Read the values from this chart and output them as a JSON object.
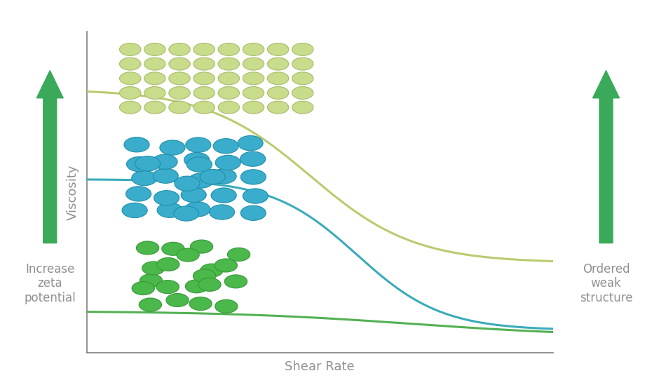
{
  "xlabel": "Shear Rate",
  "ylabel": "Viscosity",
  "background_color": "#ffffff",
  "axis_color": "#808080",
  "curve_top_color": "#b8cc6e",
  "curve_mid_color": "#3aabba",
  "curve_bot_color": "#52b152",
  "arrow_color": "#3aaa5a",
  "text_color": "#909090",
  "left_arrow_text": "Increase\nzeta\npotential",
  "right_arrow_text": "Ordered\nweak\nstructure",
  "particle_large_color": "#c8dc8c",
  "particle_large_edge": "#a8bc6c",
  "particle_mid_color": "#3aaccc",
  "particle_mid_edge": "#2090aa",
  "particle_small_color": "#4ab84a",
  "particle_small_edge": "#389838",
  "xlim": [
    0,
    10
  ],
  "ylim": [
    0,
    10
  ]
}
